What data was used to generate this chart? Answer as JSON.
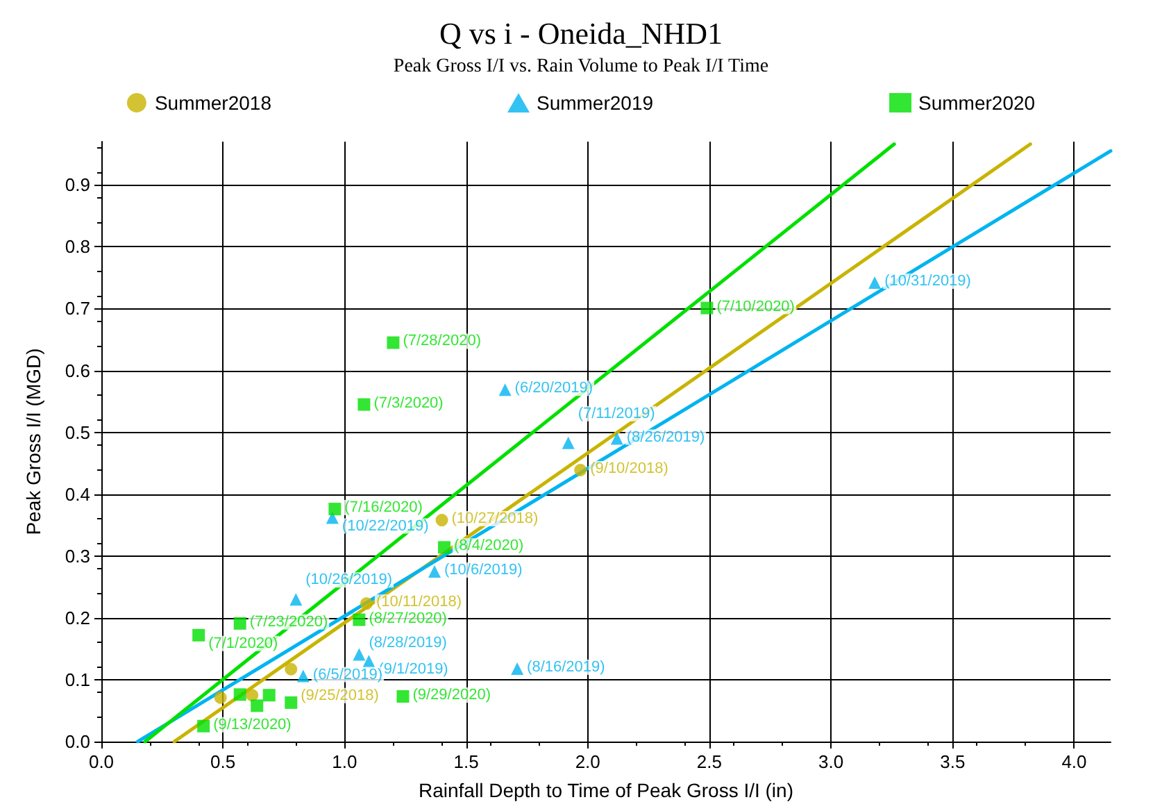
{
  "chart_data": {
    "type": "scatter",
    "title": "Q vs i - Oneida_NHD1",
    "subtitle": "Peak Gross I/I vs. Rain Volume to Peak I/I Time",
    "xlabel": "Rainfall Depth to Time of Peak Gross I/I (in)",
    "ylabel": "Peak Gross I/I (MGD)",
    "xlim": [
      0,
      4.15
    ],
    "ylim": [
      0,
      0.97
    ],
    "xticks": [
      {
        "value": 0,
        "label": "0.0"
      },
      {
        "value": 0.5,
        "label": "0.5"
      },
      {
        "value": 1,
        "label": "1.0"
      },
      {
        "value": 1.5,
        "label": "1.5"
      },
      {
        "value": 2,
        "label": "2.0"
      },
      {
        "value": 2.5,
        "label": "2.5"
      },
      {
        "value": 3,
        "label": "3.0"
      },
      {
        "value": 3.5,
        "label": "3.5"
      },
      {
        "value": 4,
        "label": "4.0"
      }
    ],
    "yticks": [
      {
        "value": 0,
        "label": "0.0"
      },
      0.1,
      0.2,
      0.3,
      0.4,
      0.5,
      0.6,
      0.7,
      0.8,
      0.9
    ],
    "grid": true,
    "legend": "top",
    "series": [
      {
        "name": "Summer2018",
        "color": "#c8b400",
        "marker": "circle",
        "x": [
          1.4,
          1.97,
          1.09,
          0.78,
          0.49,
          0.62
        ],
        "values": [
          0.358,
          0.439,
          0.223,
          0.117,
          0.071,
          0.075
        ],
        "value_labels": [
          "(10/27/2018)",
          "(9/10/2018)",
          "(10/11/2018)",
          "(9/25/2018)",
          null,
          null
        ]
      },
      {
        "name": "Summer2019",
        "color": "#00b4f0",
        "marker": "triangle",
        "x": [
          3.18,
          1.66,
          1.92,
          2.12,
          0.95,
          1.37,
          0.8,
          1.06,
          1.1,
          1.71,
          0.83
        ],
        "values": [
          0.742,
          0.569,
          0.483,
          0.49,
          0.362,
          0.275,
          0.23,
          0.141,
          0.13,
          0.118,
          0.106
        ],
        "value_labels": [
          "(10/31/2019)",
          "(6/20/2019)",
          "(7/11/2019)",
          "(8/26/2019)",
          "(10/22/2019)",
          "(10/6/2019)",
          "(10/26/2019)",
          "(8/28/2019)",
          "(9/1/2019)",
          "(8/16/2019)",
          "(6/5/2019)"
        ]
      },
      {
        "name": "Summer2020",
        "color": "#00e000",
        "marker": "square",
        "x": [
          2.49,
          1.2,
          1.08,
          0.96,
          1.41,
          0.57,
          0.4,
          1.06,
          1.24,
          0.42,
          0.57,
          0.64,
          0.69,
          0.78
        ],
        "values": [
          0.701,
          0.645,
          0.545,
          0.376,
          0.314,
          0.191,
          0.172,
          0.197,
          0.073,
          0.025,
          0.076,
          0.058,
          0.075,
          0.063
        ],
        "value_labels": [
          "(7/10/2020)",
          "(7/28/2020)",
          "(7/3/2020)",
          "(7/16/2020)",
          "(8/4/2020)",
          "(7/23/2020)",
          "(7/1/2020)",
          "(8/27/2020)",
          "(9/29/2020)",
          "(9/13/2020)",
          null,
          null,
          null,
          null
        ]
      },
      {
        "type": "line",
        "color": "#c8b400",
        "marker": "none",
        "x": [
          0.3,
          3.82
        ],
        "values": [
          0,
          0.966
        ]
      },
      {
        "type": "line",
        "color": "#00b4f0",
        "marker": "none",
        "x": [
          0.15,
          4.15
        ],
        "values": [
          0,
          0.955
        ]
      },
      {
        "type": "line",
        "color": "#00e000",
        "marker": "none",
        "x": [
          0.18,
          3.26
        ],
        "values": [
          0,
          0.966
        ]
      }
    ]
  }
}
